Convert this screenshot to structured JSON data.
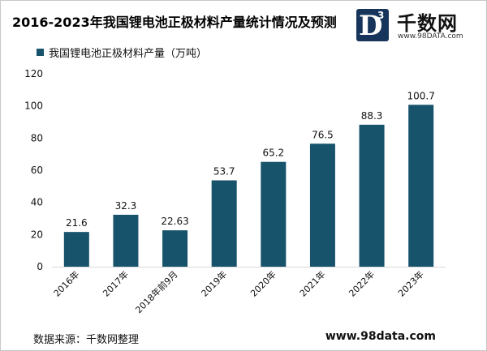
{
  "title": "2016-2023年我国锂电池正极材料产量统计情况及预测",
  "logo": {
    "badge_letter": "D",
    "badge_superscript": "3",
    "name": "千数网",
    "url": "www.98DATA.com"
  },
  "source": "数据来源：千数网整理",
  "site": "www.98data.com",
  "colors": {
    "bar": "#17536b",
    "axis": "#d9d9d9",
    "text": "#111111"
  },
  "chart_data": {
    "type": "bar",
    "categories": [
      "2016年",
      "2017年",
      "2018年前9月",
      "2019年",
      "2020年",
      "2021年",
      "2022年",
      "2023年"
    ],
    "series": [
      {
        "name": "我国锂电池正极材料产量（万吨）",
        "values": [
          21.6,
          32.3,
          22.63,
          53.7,
          65.2,
          76.5,
          88.3,
          100.7
        ],
        "labels": [
          "21.6",
          "32.3",
          "22.63",
          "53.7",
          "65.2",
          "76.5",
          "88.3",
          "100.7"
        ]
      }
    ],
    "title": "2016-2023年我国锂电池正极材料产量统计情况及预测",
    "xlabel": "",
    "ylabel": "",
    "ylim": [
      0,
      120
    ],
    "yticks": [
      0,
      20,
      40,
      60,
      80,
      100,
      120
    ],
    "grid": false,
    "legend": "top-left"
  }
}
